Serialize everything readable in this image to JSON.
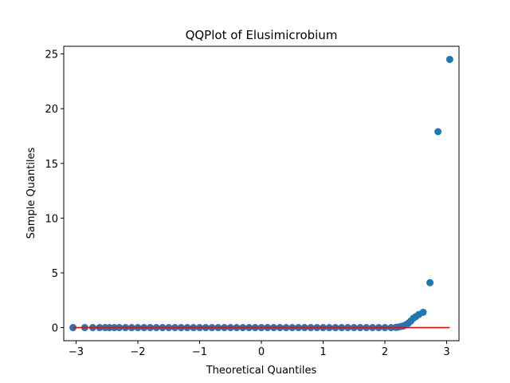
{
  "chart_data": {
    "type": "scatter",
    "title": "QQPlot of Elusimicrobium",
    "xlabel": "Theoretical Quantiles",
    "ylabel": "Sample Quantiles",
    "xlim": [
      -3.2,
      3.2
    ],
    "ylim": [
      -1.2,
      25.7
    ],
    "x_ticks": [
      -3,
      -2,
      -1,
      0,
      1,
      2,
      3
    ],
    "x_tick_labels": [
      "−3",
      "−2",
      "−1",
      "0",
      "1",
      "2",
      "3"
    ],
    "y_ticks": [
      0,
      5,
      10,
      15,
      20,
      25
    ],
    "y_tick_labels": [
      "0",
      "5",
      "10",
      "15",
      "20",
      "25"
    ],
    "grid": false,
    "legend": "none",
    "marker_color": "#1f77b4",
    "line_color": "#ff0000",
    "reference_line": {
      "x": [
        -3.05,
        3.05
      ],
      "y": [
        0,
        0
      ]
    },
    "series": [
      {
        "points": [
          [
            -3.05,
            0
          ],
          [
            -2.86,
            0
          ],
          [
            -2.73,
            0
          ],
          [
            -2.62,
            0
          ],
          [
            -2.53,
            0
          ],
          [
            -2.46,
            0
          ],
          [
            -2.38,
            0
          ],
          [
            -2.3,
            0
          ],
          [
            -2.2,
            0
          ],
          [
            -2.1,
            0
          ],
          [
            -2.0,
            0
          ],
          [
            -1.9,
            0
          ],
          [
            -1.8,
            0
          ],
          [
            -1.7,
            0
          ],
          [
            -1.6,
            0
          ],
          [
            -1.5,
            0
          ],
          [
            -1.4,
            0
          ],
          [
            -1.3,
            0
          ],
          [
            -1.2,
            0
          ],
          [
            -1.1,
            0
          ],
          [
            -1.0,
            0
          ],
          [
            -0.9,
            0
          ],
          [
            -0.8,
            0
          ],
          [
            -0.7,
            0
          ],
          [
            -0.6,
            0
          ],
          [
            -0.5,
            0
          ],
          [
            -0.4,
            0
          ],
          [
            -0.3,
            0
          ],
          [
            -0.2,
            0
          ],
          [
            -0.1,
            0
          ],
          [
            0.0,
            0
          ],
          [
            0.1,
            0
          ],
          [
            0.2,
            0
          ],
          [
            0.3,
            0
          ],
          [
            0.4,
            0
          ],
          [
            0.5,
            0
          ],
          [
            0.6,
            0
          ],
          [
            0.7,
            0
          ],
          [
            0.8,
            0
          ],
          [
            0.9,
            0
          ],
          [
            1.0,
            0
          ],
          [
            1.1,
            0
          ],
          [
            1.2,
            0
          ],
          [
            1.3,
            0
          ],
          [
            1.4,
            0
          ],
          [
            1.5,
            0
          ],
          [
            1.6,
            0
          ],
          [
            1.7,
            0
          ],
          [
            1.8,
            0
          ],
          [
            1.9,
            0
          ],
          [
            2.0,
            0
          ],
          [
            2.1,
            0
          ],
          [
            2.18,
            0.02
          ],
          [
            2.22,
            0.05
          ],
          [
            2.26,
            0.1
          ],
          [
            2.3,
            0.15
          ],
          [
            2.34,
            0.25
          ],
          [
            2.38,
            0.4
          ],
          [
            2.42,
            0.6
          ],
          [
            2.46,
            0.85
          ],
          [
            2.5,
            1.0
          ],
          [
            2.55,
            1.2
          ],
          [
            2.62,
            1.4
          ],
          [
            2.73,
            4.1
          ],
          [
            2.86,
            17.9
          ],
          [
            3.05,
            24.5
          ]
        ]
      }
    ]
  }
}
